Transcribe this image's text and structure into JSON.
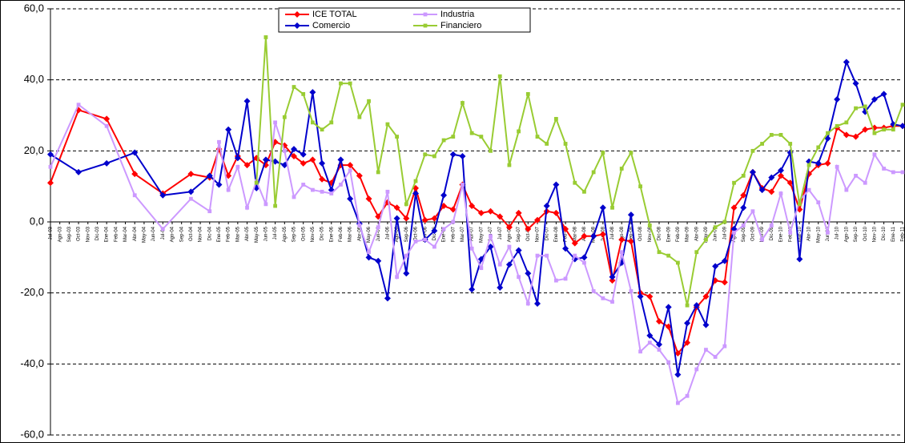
{
  "chart_data": {
    "type": "line",
    "categories": [
      "Jul-03",
      "Ago-03",
      "Sep-03",
      "Oct-03",
      "Nov-03",
      "Dic-03",
      "Ene-04",
      "Feb-04",
      "Mar-04",
      "Abr-04",
      "May-04",
      "Jun-04",
      "Jul-04",
      "Ago-04",
      "Sep-04",
      "Oct-04",
      "Nov-04",
      "Dic-04",
      "Ene-05",
      "Feb-05",
      "Mar-05",
      "Abr-05",
      "May-05",
      "Jun-05",
      "Jul-05",
      "Ago-05",
      "Sep-05",
      "Oct-05",
      "Nov-05",
      "Dic-05",
      "Ene-06",
      "Feb-06",
      "Mar-06",
      "Abr-06",
      "May-06",
      "Jun-06",
      "Jul-06",
      "Ago-06",
      "Sep-06",
      "Oct-06",
      "Nov-06",
      "Dic-06",
      "Ene-07",
      "Feb-07",
      "Mar-07",
      "Abr-07",
      "May-07",
      "Jun-07",
      "Jul-07",
      "Ago-07",
      "Sep-07",
      "Oct-07",
      "Nov-07",
      "Dic-07",
      "Ene-08",
      "Feb-08",
      "Mar-08",
      "Abr-08",
      "May-08",
      "Jun-08",
      "Jul-08",
      "Ago-08",
      "Sep-08",
      "Oct-08",
      "Nov-08",
      "Dic-08",
      "Ene-09",
      "Feb-09",
      "Mar-09",
      "Abr-09",
      "May-09",
      "Jun-09",
      "Jul-09",
      "Ago-09",
      "Sep-09",
      "Oct-09",
      "Nov-09",
      "Dic-09",
      "Ene-10",
      "Feb-10",
      "Mar-10",
      "Abr-10",
      "May-10",
      "Jun-10",
      "Jul-10",
      "Ago-10",
      "Sep-10",
      "Oct-10",
      "Nov-10",
      "Dic-10",
      "Ene-11",
      "Feb-11"
    ],
    "series": [
      {
        "name": "ICE TOTAL",
        "color": "#ff0000",
        "marker": "diamond",
        "values": [
          11,
          null,
          null,
          31.5,
          null,
          null,
          29,
          null,
          null,
          13.5,
          null,
          null,
          8,
          null,
          null,
          13.5,
          null,
          12.5,
          20.5,
          13,
          18.5,
          16,
          18,
          16,
          22.5,
          21.5,
          18.5,
          16.5,
          17.5,
          12,
          11,
          16,
          16,
          13,
          6.5,
          1.5,
          5.5,
          4,
          1,
          9.5,
          0.5,
          1,
          4.5,
          3.5,
          10.5,
          4.5,
          2.5,
          3,
          1.5,
          -1.5,
          2.5,
          -2,
          0.5,
          3,
          2.5,
          -2,
          -6,
          -4,
          -4,
          -3.5,
          -16.5,
          -5,
          -5.5,
          -20,
          -21,
          -28,
          -29.5,
          -37,
          -34,
          -24,
          -21,
          -16.5,
          -17,
          4,
          7.5,
          14,
          9.5,
          8.5,
          13,
          11,
          3.5,
          13.5,
          16,
          16.5,
          26.5,
          24.5,
          24,
          26,
          26.5,
          26.5,
          27,
          27
        ]
      },
      {
        "name": "Comercio",
        "color": "#0000cc",
        "marker": "diamond",
        "values": [
          19,
          null,
          null,
          14,
          null,
          null,
          16.5,
          null,
          null,
          19.5,
          null,
          null,
          7.5,
          null,
          null,
          8.5,
          null,
          13,
          10.5,
          26,
          18,
          34,
          9.5,
          17.5,
          17,
          16,
          20.5,
          19,
          36.5,
          16.5,
          9,
          17.5,
          6.5,
          -0.5,
          -10,
          -11,
          -21.5,
          1,
          -14.5,
          8,
          -5,
          -2.5,
          7.5,
          19,
          18.5,
          -19,
          -10.5,
          -7,
          -18.5,
          -12,
          -8,
          -14.5,
          -23,
          4.5,
          10.5,
          -7.5,
          -10.5,
          -10,
          -4,
          4,
          -15.5,
          -11.5,
          2,
          -21,
          -32,
          -34.5,
          -24,
          -43,
          -28.5,
          -23.5,
          -29,
          -12.5,
          -11,
          -2,
          4,
          14,
          9,
          12.5,
          14.5,
          19.5,
          -10.5,
          17,
          16.5,
          23.5,
          34.5,
          45,
          39,
          31,
          34.5,
          36,
          27.5,
          27
        ]
      },
      {
        "name": "Industria",
        "color": "#cc99ff",
        "marker": "square",
        "values": [
          15.5,
          null,
          null,
          33,
          null,
          null,
          27,
          null,
          null,
          7.5,
          null,
          null,
          -2,
          null,
          null,
          6.5,
          null,
          3,
          22.5,
          9,
          15.5,
          4,
          11.5,
          5,
          28,
          20,
          7,
          10.5,
          9,
          8.5,
          8,
          10.5,
          14.5,
          -1,
          -8.5,
          -1.5,
          8.5,
          -15.5,
          -9.5,
          -5.5,
          -5,
          -7,
          -2,
          0,
          10.5,
          -7.5,
          -13,
          -4,
          -12,
          -7,
          -15.5,
          -23,
          -9.5,
          -9.5,
          -16.5,
          -16,
          -9.5,
          -11.5,
          -19.5,
          -21.5,
          -22.5,
          -8.5,
          -19.5,
          -36.5,
          -34,
          -36,
          -39.5,
          -51,
          -49,
          -41.5,
          -36,
          -38,
          -35,
          -3,
          -1,
          3,
          -5,
          -1,
          8,
          -3,
          6,
          9,
          5.5,
          -3,
          15.5,
          9,
          13,
          11,
          19,
          15,
          14,
          14
        ]
      },
      {
        "name": "Financiero",
        "color": "#99cc33",
        "marker": "square",
        "values": [
          null,
          null,
          null,
          null,
          null,
          null,
          null,
          null,
          null,
          null,
          null,
          null,
          null,
          null,
          null,
          null,
          null,
          null,
          null,
          null,
          null,
          null,
          11,
          52,
          4.5,
          29.5,
          38,
          36,
          28,
          26,
          28,
          39,
          39,
          29.5,
          34,
          14,
          27.5,
          24,
          5,
          11.5,
          19,
          18.5,
          23,
          24,
          33.5,
          25,
          24,
          20,
          41,
          16,
          25.5,
          36,
          24,
          22,
          29,
          22,
          11,
          8.5,
          14,
          19.5,
          4,
          15,
          19.5,
          10,
          -1,
          -8.5,
          -9.5,
          -11.5,
          -23.5,
          -8.5,
          -5,
          -1.5,
          0,
          11,
          13,
          20,
          22,
          24.5,
          24.5,
          22,
          5,
          16,
          21,
          25,
          27,
          28,
          32,
          32.5,
          25,
          26,
          26,
          33
        ]
      }
    ],
    "span_gaps": true,
    "ylim": [
      -60,
      60
    ],
    "yticks": [
      {
        "value": -60,
        "label": "-60,0"
      },
      {
        "value": -40,
        "label": "-40,0"
      },
      {
        "value": -20,
        "label": "-20,0"
      },
      {
        "value": 0,
        "label": "0,0"
      },
      {
        "value": 20,
        "label": "20,0"
      },
      {
        "value": 40,
        "label": "40,0"
      },
      {
        "value": 60,
        "label": "60,0"
      }
    ],
    "grid": true,
    "legend": "top-center"
  }
}
